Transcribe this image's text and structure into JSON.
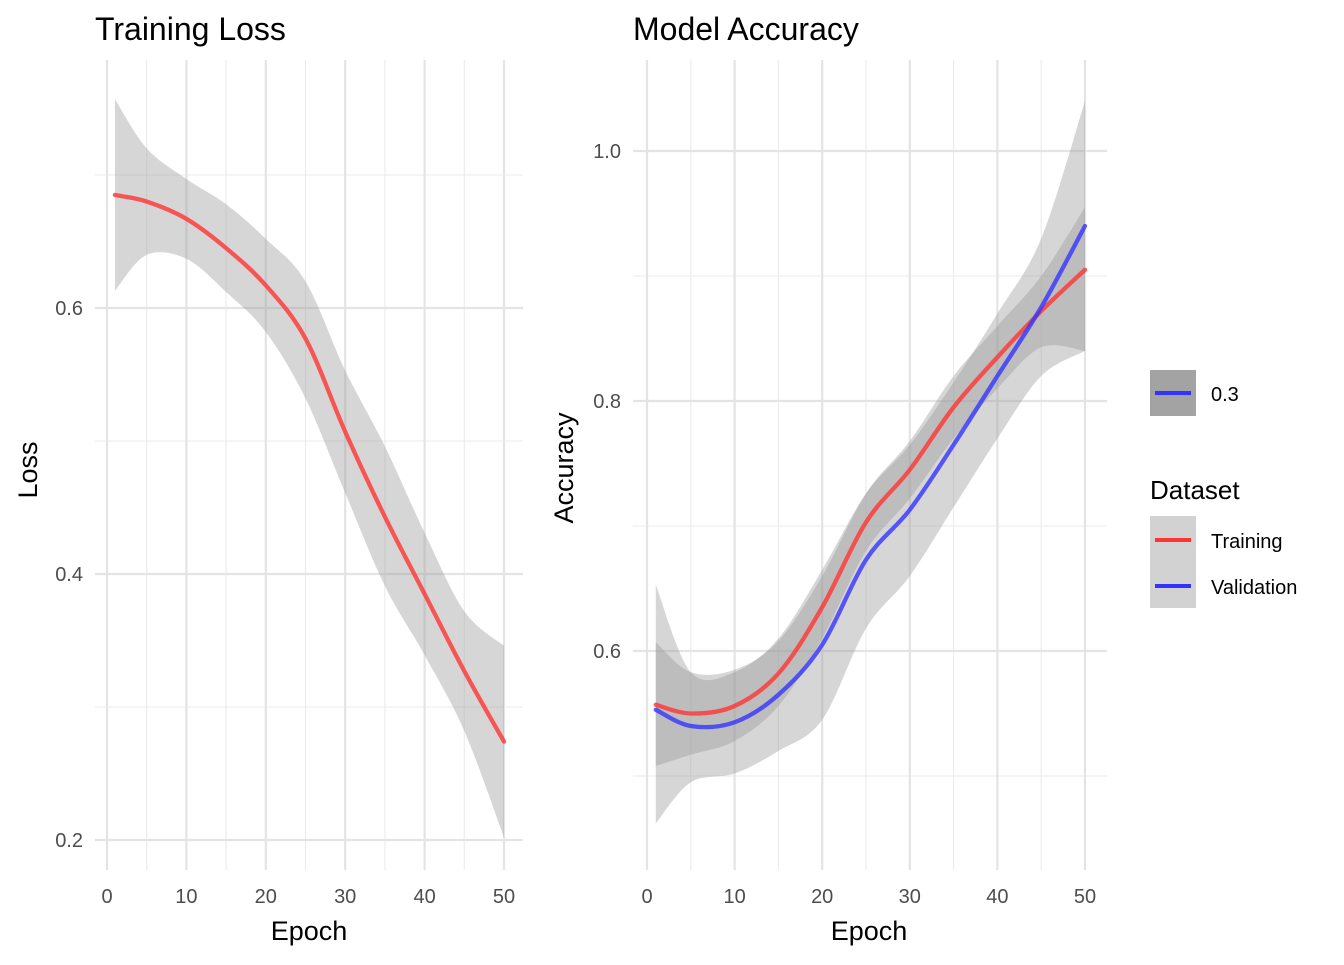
{
  "chart_data": [
    {
      "type": "line",
      "title": "Training Loss",
      "xlabel": "Epoch",
      "ylabel": "Loss",
      "xlim": [
        1,
        50
      ],
      "ylim": [
        0.2,
        0.75
      ],
      "x_ticks": [
        0,
        10,
        20,
        30,
        40,
        50
      ],
      "x_tick_labels": [
        "0",
        "10",
        "20",
        "30",
        "40",
        "50"
      ],
      "y_ticks": [
        0.2,
        0.4,
        0.6
      ],
      "y_tick_labels": [
        "0.2",
        "0.4",
        "0.6"
      ],
      "grid": true,
      "series": [
        {
          "color": "#ff3333",
          "ribbon_color": "#999999",
          "x": [
            1,
            5,
            10,
            15,
            20,
            25,
            30,
            35,
            40,
            45,
            50
          ],
          "y": [
            0.685,
            0.68,
            0.667,
            0.645,
            0.617,
            0.577,
            0.507,
            0.443,
            0.385,
            0.327,
            0.274
          ],
          "lower": [
            0.613,
            0.64,
            0.637,
            0.612,
            0.582,
            0.532,
            0.461,
            0.391,
            0.339,
            0.282,
            0.202
          ],
          "upper": [
            0.757,
            0.72,
            0.697,
            0.678,
            0.652,
            0.62,
            0.553,
            0.496,
            0.431,
            0.372,
            0.346
          ]
        }
      ]
    },
    {
      "type": "line",
      "title": "Model Accuracy",
      "xlabel": "Epoch",
      "ylabel": "Accuracy",
      "xlim": [
        1,
        50
      ],
      "ylim": [
        0.45,
        1.05
      ],
      "x_ticks": [
        0,
        10,
        20,
        30,
        40,
        50
      ],
      "x_tick_labels": [
        "0",
        "10",
        "20",
        "30",
        "40",
        "50"
      ],
      "y_ticks": [
        0.6,
        0.8,
        1.0
      ],
      "y_tick_labels": [
        "0.6",
        "0.8",
        "1.0"
      ],
      "grid": true,
      "legend_position": "right",
      "legend_title": "Dataset",
      "extra_legend_label": "0.3",
      "series": [
        {
          "name": "Training",
          "color": "#ff3333",
          "ribbon_color": "#999999",
          "x": [
            1,
            5,
            10,
            15,
            20,
            25,
            30,
            35,
            40,
            45,
            50
          ],
          "y": [
            0.557,
            0.55,
            0.556,
            0.582,
            0.635,
            0.703,
            0.745,
            0.795,
            0.835,
            0.872,
            0.905
          ],
          "lower": [
            0.508,
            0.517,
            0.528,
            0.556,
            0.61,
            0.68,
            0.722,
            0.77,
            0.81,
            0.843,
            0.84
          ],
          "upper": [
            0.607,
            0.583,
            0.585,
            0.608,
            0.66,
            0.726,
            0.768,
            0.82,
            0.86,
            0.9,
            0.955
          ]
        },
        {
          "name": "Validation",
          "color": "#3333ff",
          "ribbon_color": "#999999",
          "x": [
            1,
            5,
            10,
            15,
            20,
            25,
            30,
            35,
            40,
            45,
            50
          ],
          "y": [
            0.553,
            0.54,
            0.543,
            0.565,
            0.605,
            0.673,
            0.713,
            0.765,
            0.82,
            0.875,
            0.94
          ],
          "lower": [
            0.462,
            0.495,
            0.502,
            0.52,
            0.545,
            0.618,
            0.66,
            0.715,
            0.77,
            0.82,
            0.84
          ],
          "upper": [
            0.653,
            0.583,
            0.583,
            0.61,
            0.665,
            0.726,
            0.765,
            0.815,
            0.87,
            0.93,
            1.04
          ]
        }
      ]
    }
  ]
}
